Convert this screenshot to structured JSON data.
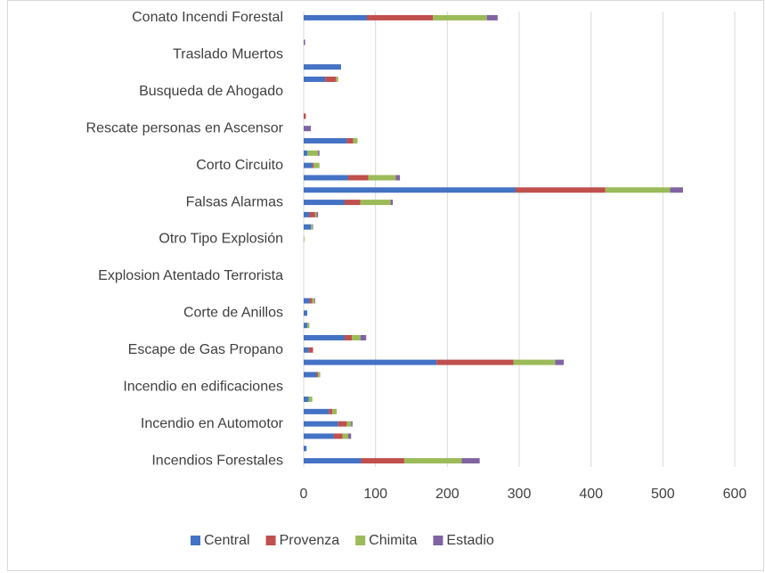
{
  "chart_data": {
    "type": "stacked-barh",
    "categories": [
      "Incendios Forestales",
      null,
      null,
      "Incendio en Automotor",
      null,
      null,
      "Incendio en edificaciones",
      null,
      null,
      "Escape de Gas Propano",
      null,
      null,
      "Corte de Anillos",
      null,
      null,
      "Explosion Atentado Terrorista",
      null,
      null,
      "Otro Tipo Explosión",
      null,
      null,
      "Falsas Alarmas",
      null,
      null,
      "Corto Circuito",
      null,
      null,
      "Rescate personas en Ascensor",
      null,
      null,
      "Busqueda de Ahogado",
      null,
      null,
      "Traslado Muertos",
      null,
      null,
      "Conato Incendi Forestal"
    ],
    "series": [
      {
        "name": "Central",
        "color": "#4472c4",
        "values": [
          80,
          4,
          42,
          48,
          35,
          7,
          0,
          18,
          185,
          7,
          57,
          5,
          5,
          8,
          0,
          0,
          0,
          0,
          0,
          10,
          8,
          57,
          295,
          62,
          12,
          5,
          60,
          0,
          0,
          0,
          0,
          30,
          52,
          0,
          0,
          0,
          88
        ]
      },
      {
        "name": "Provenza",
        "color": "#c0504d",
        "values": [
          60,
          0,
          12,
          12,
          5,
          0,
          0,
          2,
          107,
          6,
          10,
          0,
          0,
          4,
          0,
          0,
          0,
          0,
          0,
          0,
          8,
          22,
          125,
          28,
          2,
          0,
          9,
          0,
          3,
          0,
          0,
          15,
          0,
          0,
          0,
          0,
          92
        ]
      },
      {
        "name": "Chimita",
        "color": "#9bbb59",
        "values": [
          80,
          0,
          8,
          6,
          6,
          5,
          0,
          3,
          58,
          0,
          12,
          3,
          0,
          3,
          0,
          0,
          0,
          0,
          1,
          2,
          2,
          42,
          90,
          38,
          8,
          15,
          6,
          0,
          0,
          0,
          0,
          3,
          0,
          0,
          0,
          0,
          75
        ]
      },
      {
        "name": "Estadio",
        "color": "#8064a2",
        "values": [
          25,
          0,
          4,
          2,
          0,
          0,
          0,
          0,
          12,
          0,
          8,
          0,
          0,
          1,
          0,
          0,
          0,
          0,
          0,
          1,
          2,
          3,
          18,
          6,
          0,
          2,
          0,
          10,
          0,
          0,
          0,
          0,
          0,
          0,
          2,
          0,
          15
        ]
      }
    ],
    "xlim": [
      0,
      600
    ],
    "xticks": [
      0,
      100,
      200,
      300,
      400,
      500,
      600
    ],
    "grid": true,
    "legend": "bottom"
  }
}
